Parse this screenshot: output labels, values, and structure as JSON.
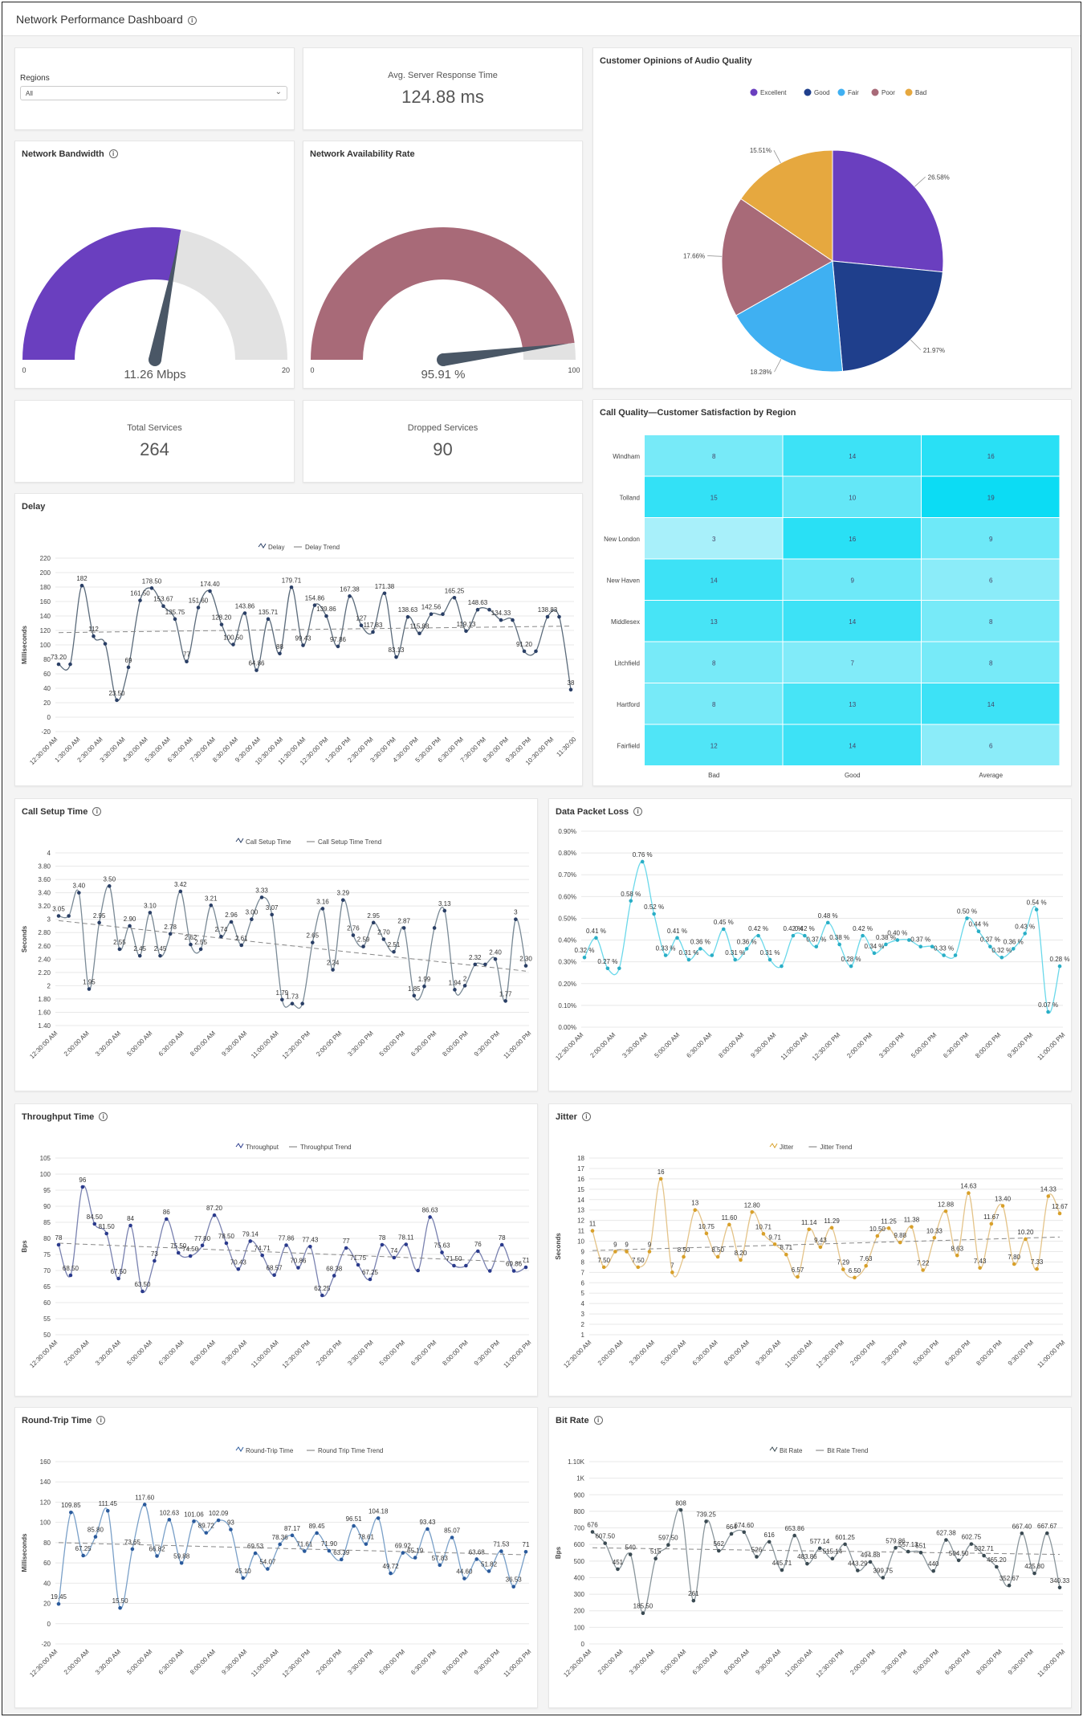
{
  "header": {
    "title": "Network Performance Dashboard"
  },
  "regions": {
    "label": "Regions",
    "selected": "All"
  },
  "response_time": {
    "label": "Avg. Server Response Time",
    "value": "124.88 ms"
  },
  "bandwidth": {
    "title": "Network Bandwidth",
    "value": "11.26 Mbps",
    "min": "0",
    "max": "20",
    "fraction": 0.563,
    "fill_color": "#6a3fbf"
  },
  "availability": {
    "title": "Network Availability Rate",
    "value": "95.91 %",
    "min": "0",
    "max": "100",
    "fraction": 0.9591,
    "fill_color": "#a86a78"
  },
  "total_services": {
    "label": "Total Services",
    "value": "264"
  },
  "dropped_services": {
    "label": "Dropped Services",
    "value": "90"
  },
  "audio_quality": {
    "title": "Customer Opinions of Audio Quality",
    "chart_data": {
      "type": "pie",
      "labels": [
        "Excellent",
        "Good",
        "Fair",
        "Poor",
        "Bad"
      ],
      "values": [
        26.58,
        21.97,
        18.28,
        17.66,
        15.51
      ],
      "value_labels": [
        "26.58%",
        "21.97%",
        "18.28%",
        "17.66%",
        "15.51%"
      ],
      "colors": [
        "#6a3fbf",
        "#1f3f8c",
        "#3fb0f2",
        "#a86a78",
        "#e6a83f"
      ],
      "legend_position": "top"
    }
  },
  "call_quality": {
    "title": "Call Quality—Customer Satisfaction by Region",
    "chart_data": {
      "type": "heatmap",
      "rows": [
        "Windham",
        "Tolland",
        "New London",
        "New Haven",
        "Middlesex",
        "Litchfield",
        "Hartford",
        "Fairfield"
      ],
      "columns": [
        "Bad",
        "Good",
        "Average"
      ],
      "values": [
        [
          8,
          14,
          16
        ],
        [
          15,
          10,
          19
        ],
        [
          3,
          16,
          9
        ],
        [
          14,
          9,
          6
        ],
        [
          13,
          14,
          8
        ],
        [
          8,
          7,
          8
        ],
        [
          8,
          13,
          14
        ],
        [
          12,
          14,
          6
        ]
      ],
      "value_range": [
        3,
        19
      ]
    }
  },
  "delay": {
    "title": "Delay",
    "chart_data": {
      "type": "line",
      "line_color": "#5a6a7a",
      "marker_color": "#2a3f66",
      "legend": [
        "Delay",
        "Delay Trend"
      ],
      "ylabel": "Milliseconds",
      "ylim": [
        -20,
        220
      ],
      "yticks": [
        "-20",
        "0",
        "20",
        "40",
        "60",
        "80",
        "100",
        "120",
        "140",
        "160",
        "180",
        "200",
        "220"
      ],
      "xticks": [
        "12:30:00 AM",
        "1:30:00 AM",
        "2:30:00 AM",
        "3:30:00 AM",
        "4:30:00 AM",
        "5:30:00 AM",
        "6:30:00 AM",
        "7:30:00 AM",
        "8:30:00 AM",
        "9:30:00 AM",
        "10:30:00 AM",
        "11:30:00 AM",
        "12:30:00 PM",
        "1:30:00 PM",
        "2:30:00 PM",
        "3:30:00 PM",
        "4:30:00 PM",
        "5:30:00 PM",
        "6:30:00 PM",
        "7:30:00 PM",
        "8:30:00 PM",
        "9:30:00 PM",
        "10:30:00 PM",
        "11:30:00"
      ],
      "values": [
        73.2,
        73.2,
        182,
        112,
        101.5,
        23.5,
        69,
        161.5,
        178.5,
        153.67,
        135.75,
        77,
        151.6,
        174.4,
        128.2,
        100.5,
        143.86,
        64.86,
        135.71,
        88,
        179.71,
        99.43,
        154.86,
        139.86,
        97.86,
        167.38,
        127,
        117.83,
        171.38,
        83.13,
        138.63,
        115.88,
        142.56,
        142.56,
        165.25,
        119.13,
        148.63,
        148.63,
        134.33,
        134.33,
        91.2,
        91.2,
        138.83,
        138.83,
        38
      ],
      "labels": [
        "73.20",
        "",
        "182",
        "112",
        "",
        "23.50",
        "69",
        "161.50",
        "178.50",
        "153.67",
        "135.75",
        "77",
        "151.60",
        "174.40",
        "128.20",
        "100.50",
        "143.86",
        "64.86",
        "135.71",
        "88",
        "179.71",
        "99.43",
        "154.86",
        "139.86",
        "97.86",
        "167.38",
        "127",
        "117.83",
        "171.38",
        "83.13",
        "138.63",
        "115.88",
        "142.56",
        "",
        "165.25",
        "119.13",
        "148.63",
        "",
        "134.33",
        "",
        "91.20",
        "",
        "138.83",
        "",
        "38"
      ],
      "trend": [
        117,
        126
      ]
    }
  },
  "call_setup": {
    "title": "Call Setup Time",
    "chart_data": {
      "type": "line",
      "line_color": "#7a8a96",
      "marker_color": "#2a3f66",
      "legend": [
        "Call Setup Time",
        "Call Setup Time Trend"
      ],
      "ylabel": "Seconds",
      "ylim": [
        1.4,
        4
      ],
      "yticks": [
        "1.40",
        "1.60",
        "1.80",
        "2",
        "2.20",
        "2.40",
        "2.60",
        "2.80",
        "3",
        "3.20",
        "3.40",
        "3.60",
        "3.80",
        "4"
      ],
      "xticks": [
        "12:30:00 AM",
        "2:00:00 AM",
        "3:30:00 AM",
        "5:00:00 AM",
        "6:30:00 AM",
        "8:00:00 AM",
        "9:30:00 AM",
        "11:00:00 AM",
        "12:30:00 PM",
        "2:00:00 PM",
        "3:30:00 PM",
        "5:00:00 PM",
        "6:30:00 PM",
        "8:00:00 PM",
        "9:30:00 PM",
        "11:00:00 PM"
      ],
      "values": [
        3.05,
        3.05,
        3.4,
        1.95,
        2.95,
        3.5,
        2.55,
        2.9,
        2.45,
        3.1,
        2.45,
        2.78,
        3.42,
        2.62,
        2.55,
        3.21,
        2.74,
        2.96,
        2.61,
        3.0,
        3.33,
        3.07,
        1.79,
        1.73,
        1.73,
        2.65,
        3.16,
        2.24,
        3.29,
        2.76,
        2.59,
        2.95,
        2.7,
        2.51,
        2.87,
        1.85,
        1.99,
        2.87,
        3.13,
        1.94,
        2,
        2.32,
        2.32,
        2.4,
        1.77,
        3,
        2.3
      ],
      "labels": [
        "3.05",
        "",
        "3.40",
        "1.95",
        "2.95",
        "3.50",
        "2.55",
        "2.90",
        "2.45",
        "3.10",
        "2.45",
        "2.78",
        "3.42",
        "2.62",
        "2.55",
        "3.21",
        "2.74",
        "2.96",
        "2.61",
        "3.00",
        "3.33",
        "3.07",
        "1.79",
        "1.73",
        "",
        "2.65",
        "3.16",
        "2.24",
        "3.29",
        "2.76",
        "2.59",
        "2.95",
        "2.70",
        "2.51",
        "2.87",
        "1.85",
        "1.99",
        "",
        "3.13",
        "1.94",
        "2",
        "2.32",
        "",
        "2.40",
        "1.77",
        "3",
        "2.30"
      ],
      "trend": [
        2.98,
        2.22
      ]
    }
  },
  "packet_loss": {
    "title": "Data Packet Loss",
    "chart_data": {
      "type": "line",
      "line_color": "#6ad8ea",
      "marker_color": "#2aaec6",
      "ylim": [
        0,
        0.9
      ],
      "yticks": [
        "0.00%",
        "0.10%",
        "0.20%",
        "0.30%",
        "0.40%",
        "0.50%",
        "0.60%",
        "0.70%",
        "0.80%",
        "0.90%"
      ],
      "xticks": [
        "12:30:00 AM",
        "2:00:00 AM",
        "3:30:00 AM",
        "5:00:00 AM",
        "6:30:00 AM",
        "8:00:00 AM",
        "9:30:00 AM",
        "11:00:00 AM",
        "12:30:00 PM",
        "2:00:00 PM",
        "3:30:00 PM",
        "5:00:00 PM",
        "6:30:00 PM",
        "8:00:00 PM",
        "9:30:00 PM",
        "11:00:00 PM"
      ],
      "values": [
        0.32,
        0.41,
        0.27,
        0.27,
        0.58,
        0.76,
        0.52,
        0.33,
        0.41,
        0.31,
        0.36,
        0.33,
        0.45,
        0.31,
        0.36,
        0.42,
        0.31,
        0.28,
        0.42,
        0.42,
        0.37,
        0.48,
        0.38,
        0.28,
        0.42,
        0.34,
        0.38,
        0.4,
        0.4,
        0.37,
        0.37,
        0.33,
        0.33,
        0.5,
        0.44,
        0.37,
        0.32,
        0.36,
        0.43,
        0.54,
        0.07,
        0.28
      ],
      "labels": [
        "0.32 %",
        "0.41 %",
        "0.27 %",
        "",
        "0.58 %",
        "0.76 %",
        "0.52 %",
        "0.33 %",
        "0.41 %",
        "0.31 %",
        "0.36 %",
        "",
        "0.45 %",
        "0.31 %",
        "0.36 %",
        "0.42 %",
        "0.31 %",
        "",
        "0.42 %",
        "0.42 %",
        "0.37 %",
        "0.48 %",
        "0.38 %",
        "0.28 %",
        "0.42 %",
        "0.34 %",
        "0.38 %",
        "0.40 %",
        "",
        "0.37 %",
        "",
        "0.33 %",
        "",
        "0.50 %",
        "0.44 %",
        "0.37 %",
        "0.32 %",
        "0.36 %",
        "0.43 %",
        "0.54 %",
        "0.07 %",
        "0.28 %"
      ]
    }
  },
  "throughput": {
    "title": "Throughput Time",
    "chart_data": {
      "type": "line",
      "line_color": "#7a82b0",
      "marker_color": "#2a3a8c",
      "legend": [
        "Throughput",
        "Throughput Trend"
      ],
      "ylabel": "Bps",
      "ylim": [
        50,
        105
      ],
      "yticks": [
        "50",
        "55",
        "60",
        "65",
        "70",
        "75",
        "80",
        "85",
        "90",
        "95",
        "100",
        "105"
      ],
      "xticks": [
        "12:30:00 AM",
        "2:00:00 AM",
        "3:30:00 AM",
        "5:00:00 AM",
        "6:30:00 AM",
        "8:00:00 AM",
        "9:30:00 AM",
        "11:00:00 AM",
        "12:30:00 PM",
        "2:00:00 PM",
        "3:30:00 PM",
        "5:00:00 PM",
        "6:30:00 PM",
        "8:00:00 PM",
        "9:30:00 PM",
        "11:00:00 PM"
      ],
      "values": [
        78,
        68.5,
        96,
        84.5,
        81.5,
        67.5,
        84,
        63.5,
        73,
        86,
        75.5,
        74.5,
        77.8,
        87.2,
        78.5,
        70.43,
        79.14,
        74.71,
        68.57,
        77.86,
        70.86,
        77.43,
        62.25,
        68.38,
        77,
        71.75,
        67.25,
        78,
        74,
        78.11,
        70,
        86.63,
        75.63,
        71.5,
        71.5,
        76,
        69.86,
        78,
        69.86,
        71
      ],
      "labels": [
        "78",
        "68.50",
        "96",
        "84.50",
        "81.50",
        "67.50",
        "84",
        "63.50",
        "73",
        "86",
        "75.50",
        "74.50",
        "77.80",
        "87.20",
        "78.50",
        "70.43",
        "79.14",
        "74.71",
        "68.57",
        "77.86",
        "70.86",
        "77.43",
        "62.25",
        "68.38",
        "77",
        "71.75",
        "67.25",
        "78",
        "74",
        "78.11",
        "",
        "86.63",
        "75.63",
        "71.50",
        "",
        "76",
        "",
        "78",
        "69.86",
        "71"
      ],
      "trend": [
        78.5,
        72.5
      ]
    }
  },
  "jitter": {
    "title": "Jitter",
    "chart_data": {
      "type": "line",
      "line_color": "#e4c48a",
      "marker_color": "#d8a02a",
      "legend": [
        "Jitter",
        "Jitter Trend"
      ],
      "ylabel": "Seconds",
      "ylim": [
        1,
        18
      ],
      "yticks": [
        "1",
        "2",
        "3",
        "4",
        "5",
        "6",
        "7",
        "8",
        "9",
        "10",
        "11",
        "12",
        "13",
        "14",
        "15",
        "16",
        "17",
        "18"
      ],
      "xticks": [
        "12:30:00 AM",
        "2:00:00 AM",
        "3:30:00 AM",
        "5:00:00 AM",
        "6:30:00 AM",
        "8:00:00 AM",
        "9:30:00 AM",
        "11:00:00 AM",
        "12:30:00 PM",
        "2:00:00 PM",
        "3:30:00 PM",
        "5:00:00 PM",
        "6:30:00 PM",
        "8:00:00 PM",
        "9:30:00 PM",
        "11:00:00 PM"
      ],
      "values": [
        11,
        7.5,
        9,
        9,
        7.5,
        9,
        16,
        7,
        8.5,
        13,
        10.75,
        8.5,
        11.6,
        8.2,
        12.8,
        10.71,
        9.71,
        8.71,
        6.57,
        11.14,
        9.43,
        11.29,
        7.29,
        6.5,
        7.63,
        10.5,
        11.25,
        9.88,
        11.38,
        7.22,
        10.33,
        12.88,
        8.63,
        14.63,
        7.43,
        11.67,
        13.4,
        7.8,
        10.2,
        7.33,
        14.33,
        12.67
      ],
      "labels": [
        "11",
        "7.50",
        "9",
        "9",
        "7.50",
        "9",
        "16",
        "7",
        "8.50",
        "13",
        "10.75",
        "8.50",
        "11.60",
        "8.20",
        "12.80",
        "10.71",
        "9.71",
        "8.71",
        "6.57",
        "11.14",
        "9.43",
        "11.29",
        "7.29",
        "6.50",
        "7.63",
        "10.50",
        "11.25",
        "9.88",
        "11.38",
        "7.22",
        "10.33",
        "12.88",
        "8.63",
        "14.63",
        "7.43",
        "11.67",
        "13.40",
        "7.80",
        "10.20",
        "7.33",
        "14.33",
        "12.67"
      ],
      "trend": [
        9.1,
        10.4
      ]
    }
  },
  "round_trip": {
    "title": "Round-Trip Time",
    "chart_data": {
      "type": "line",
      "line_color": "#7aa0c8",
      "marker_color": "#2a5a9c",
      "legend": [
        "Round-Trip Time",
        "Round Trip Time Trend"
      ],
      "ylabel": "Milliseconds",
      "ylim": [
        -20,
        160
      ],
      "yticks": [
        "-20",
        "0",
        "20",
        "40",
        "60",
        "80",
        "100",
        "120",
        "140",
        "160"
      ],
      "xticks": [
        "12:30:00 AM",
        "2:00:00 AM",
        "3:30:00 AM",
        "5:00:00 AM",
        "6:30:00 AM",
        "8:00:00 AM",
        "9:30:00 AM",
        "11:00:00 AM",
        "12:30:00 PM",
        "2:00:00 PM",
        "3:30:00 PM",
        "5:00:00 PM",
        "6:30:00 PM",
        "8:00:00 PM",
        "9:30:00 PM",
        "11:00:00 PM"
      ],
      "values": [
        19.45,
        109.85,
        67.25,
        85.8,
        111.45,
        15.5,
        73.65,
        117.6,
        66.82,
        102.63,
        59.88,
        101.06,
        89.72,
        102.09,
        93,
        45.1,
        69.53,
        54.07,
        78.36,
        87.17,
        71.61,
        89.45,
        71.9,
        63.39,
        96.51,
        78.61,
        104.18,
        49.72,
        69.92,
        65.19,
        93.43,
        57.83,
        85.07,
        44.6,
        63.68,
        51.82,
        71.53,
        36.53,
        71
      ],
      "labels": [
        "19.45",
        "109.85",
        "67.25",
        "85.80",
        "111.45",
        "15.50",
        "73.65",
        "117.60",
        "66.82",
        "102.63",
        "59.88",
        "101.06",
        "89.72",
        "102.09",
        "93",
        "45.10",
        "69.53",
        "54.07",
        "78.36",
        "87.17",
        "71.61",
        "89.45",
        "71.90",
        "63.39",
        "96.51",
        "78.61",
        "104.18",
        "49.72",
        "69.92",
        "65.19",
        "93.43",
        "57.83",
        "85.07",
        "44.60",
        "63.68",
        "51.82",
        "71.53",
        "36.53",
        "71"
      ],
      "trend": [
        80,
        68
      ]
    }
  },
  "bit_rate": {
    "title": "Bit Rate",
    "chart_data": {
      "type": "line",
      "line_color": "#8a969c",
      "marker_color": "#3a4a52",
      "legend": [
        "Bit Rate",
        "Bit Rate Trend"
      ],
      "ylabel": "Bps",
      "ylim": [
        0,
        1100
      ],
      "yticks": [
        "0",
        "100",
        "200",
        "300",
        "400",
        "500",
        "600",
        "700",
        "800",
        "900",
        "1K",
        "1.10K"
      ],
      "xticks": [
        "12:30:00 AM",
        "2:00:00 AM",
        "3:30:00 AM",
        "5:00:00 AM",
        "6:30:00 AM",
        "8:00:00 AM",
        "9:30:00 AM",
        "11:00:00 AM",
        "12:30:00 PM",
        "2:00:00 PM",
        "3:30:00 PM",
        "5:00:00 PM",
        "6:30:00 PM",
        "8:00:00 PM",
        "9:30:00 PM",
        "11:00:00 PM"
      ],
      "values": [
        676,
        607.5,
        451,
        540,
        185.5,
        515,
        597.5,
        808,
        261,
        739.25,
        562,
        664,
        674.6,
        526,
        616,
        445.71,
        653.86,
        483.86,
        577.14,
        515.14,
        601.25,
        443.29,
        494.88,
        399.75,
        579.86,
        557.13,
        551,
        440,
        627.38,
        504.5,
        602.75,
        532.71,
        465.2,
        352.67,
        667.4,
        425.8,
        667.67,
        340.33
      ],
      "labels": [
        "676",
        "607.50",
        "451",
        "540",
        "185.50",
        "515",
        "597.50",
        "808",
        "261",
        "739.25",
        "562",
        "664",
        "674.60",
        "526",
        "616",
        "445.71",
        "653.86",
        "483.86",
        "577.14",
        "515.14",
        "601.25",
        "443.29",
        "494.88",
        "399.75",
        "579.86",
        "557.13",
        "551",
        "440",
        "627.38",
        "504.50",
        "602.75",
        "532.71",
        "465.20",
        "352.67",
        "667.40",
        "425.80",
        "667.67",
        "340.33"
      ],
      "trend": [
        580,
        540
      ]
    }
  }
}
